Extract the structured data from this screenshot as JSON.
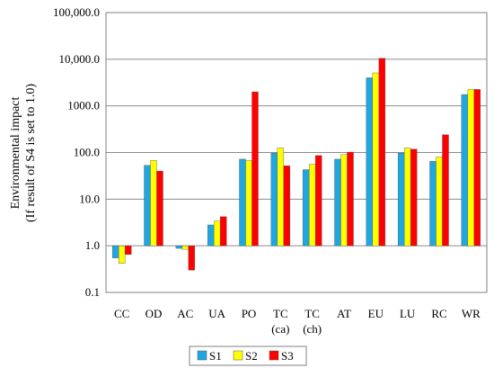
{
  "chart_data": {
    "type": "bar",
    "ylabel_line1": "Environmental impact",
    "ylabel_line2": "(If result of S4 is set to 1.0)",
    "yscale": "log",
    "ylim": [
      0.1,
      100000
    ],
    "yticks": [
      "0.1",
      "1.0",
      "10.0",
      "100.0",
      "1000.0",
      "10,000.0",
      "100,000.0"
    ],
    "grid": true,
    "categories": [
      {
        "line1": "CC",
        "line2": ""
      },
      {
        "line1": "OD",
        "line2": ""
      },
      {
        "line1": "AC",
        "line2": ""
      },
      {
        "line1": "UA",
        "line2": ""
      },
      {
        "line1": "PO",
        "line2": ""
      },
      {
        "line1": "TC",
        "line2": "(ca)"
      },
      {
        "line1": "TC",
        "line2": "(ch)"
      },
      {
        "line1": "AT",
        "line2": ""
      },
      {
        "line1": "EU",
        "line2": ""
      },
      {
        "line1": "LU",
        "line2": ""
      },
      {
        "line1": "RC",
        "line2": ""
      },
      {
        "line1": "WR",
        "line2": ""
      }
    ],
    "series": [
      {
        "name": "S1",
        "color": "#1ea7e1",
        "values": [
          0.55,
          53,
          0.88,
          2.8,
          72,
          97,
          43,
          72,
          4000,
          97,
          65,
          1750
        ]
      },
      {
        "name": "S2",
        "color": "#ffff00",
        "values": [
          0.42,
          68,
          0.84,
          3.4,
          67,
          125,
          56,
          90,
          5100,
          125,
          80,
          2250
        ]
      },
      {
        "name": "S3",
        "color": "#ff0000",
        "values": [
          0.65,
          40,
          0.3,
          4.2,
          2000,
          52,
          86,
          102,
          10500,
          118,
          240,
          2250
        ]
      }
    ],
    "legend_position": "bottom-center"
  }
}
